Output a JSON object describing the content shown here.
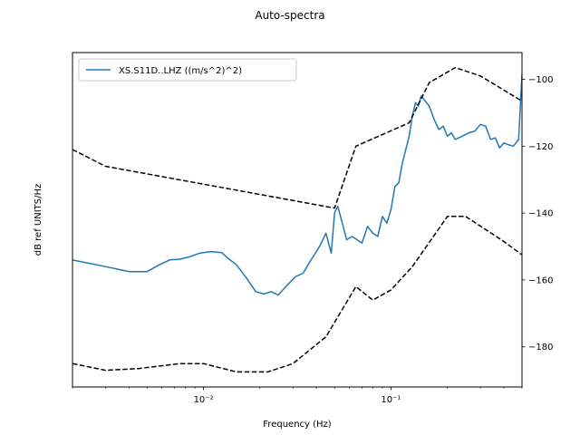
{
  "chart_data": {
    "type": "line",
    "title": "Auto-spectra",
    "xlabel": "Frequency (Hz)",
    "ylabel": "dB ref UNITS/Hz",
    "xscale": "log",
    "xlim": [
      0.002,
      0.5
    ],
    "ylim": [
      -192,
      -92
    ],
    "grid": false,
    "legend_position": "top-left",
    "yticks": [
      -100,
      -120,
      -140,
      -160,
      -180
    ],
    "ytick_labels": [
      "−100",
      "−120",
      "−140",
      "−160",
      "−180"
    ],
    "xticks": [
      0.01,
      0.1
    ],
    "xtick_labels": [
      "10⁻²",
      "10⁻¹"
    ],
    "series": [
      {
        "name": "XS.S11D..LHZ ((m/s^2)^2)",
        "color": "#1f77b4",
        "style": "solid",
        "x": [
          0.002,
          0.003,
          0.004,
          0.005,
          0.0058,
          0.0066,
          0.0075,
          0.0085,
          0.0095,
          0.011,
          0.0125,
          0.0135,
          0.015,
          0.017,
          0.019,
          0.021,
          0.023,
          0.025,
          0.028,
          0.031,
          0.034,
          0.037,
          0.04,
          0.042,
          0.045,
          0.048,
          0.05,
          0.052,
          0.055,
          0.058,
          0.062,
          0.066,
          0.07,
          0.075,
          0.08,
          0.085,
          0.09,
          0.095,
          0.1,
          0.105,
          0.11,
          0.115,
          0.12,
          0.125,
          0.13,
          0.135,
          0.14,
          0.145,
          0.15,
          0.16,
          0.17,
          0.18,
          0.19,
          0.2,
          0.21,
          0.22,
          0.24,
          0.26,
          0.28,
          0.3,
          0.32,
          0.34,
          0.36,
          0.38,
          0.4,
          0.42,
          0.45,
          0.48,
          0.5
        ],
        "y": [
          -154,
          -156,
          -157.5,
          -157.5,
          -155.5,
          -154,
          -153.8,
          -153,
          -152,
          -151.5,
          -151.8,
          -153.5,
          -155.5,
          -159.5,
          -163.5,
          -164.2,
          -163.5,
          -164.5,
          -161.5,
          -159,
          -158,
          -154.5,
          -151.5,
          -149.5,
          -146,
          -152,
          -140,
          -138,
          -143,
          -148,
          -147,
          -148,
          -149,
          -144,
          -146,
          -147,
          -141,
          -143,
          -139,
          -132,
          -131,
          -125,
          -121,
          -117,
          -111,
          -107,
          -108,
          -105,
          -106,
          -108,
          -112,
          -115,
          -114,
          -117,
          -116,
          -118,
          -117,
          -116,
          -115.5,
          -113.5,
          -114,
          -118,
          -117.5,
          -120.5,
          -119,
          -119.5,
          -120,
          -118,
          -98.5
        ]
      },
      {
        "name": "",
        "color": "#000000",
        "style": "dashed",
        "x": [
          0.002,
          0.003,
          0.05,
          0.065,
          0.125,
          0.16,
          0.22,
          0.3,
          0.5
        ],
        "y": [
          -121,
          -126,
          -138.5,
          -120,
          -113,
          -101,
          -96.5,
          -99,
          -106.5
        ]
      },
      {
        "name": "",
        "color": "#000000",
        "style": "dashed",
        "x": [
          0.002,
          0.003,
          0.0045,
          0.0075,
          0.01,
          0.015,
          0.022,
          0.03,
          0.045,
          0.065,
          0.08,
          0.1,
          0.13,
          0.2,
          0.25,
          0.4,
          0.5
        ],
        "y": [
          -185,
          -187,
          -186.5,
          -185,
          -185,
          -187.5,
          -187.5,
          -185,
          -177,
          -162,
          -166,
          -163,
          -156,
          -141,
          -141,
          -148.5,
          -152.5
        ]
      }
    ]
  }
}
